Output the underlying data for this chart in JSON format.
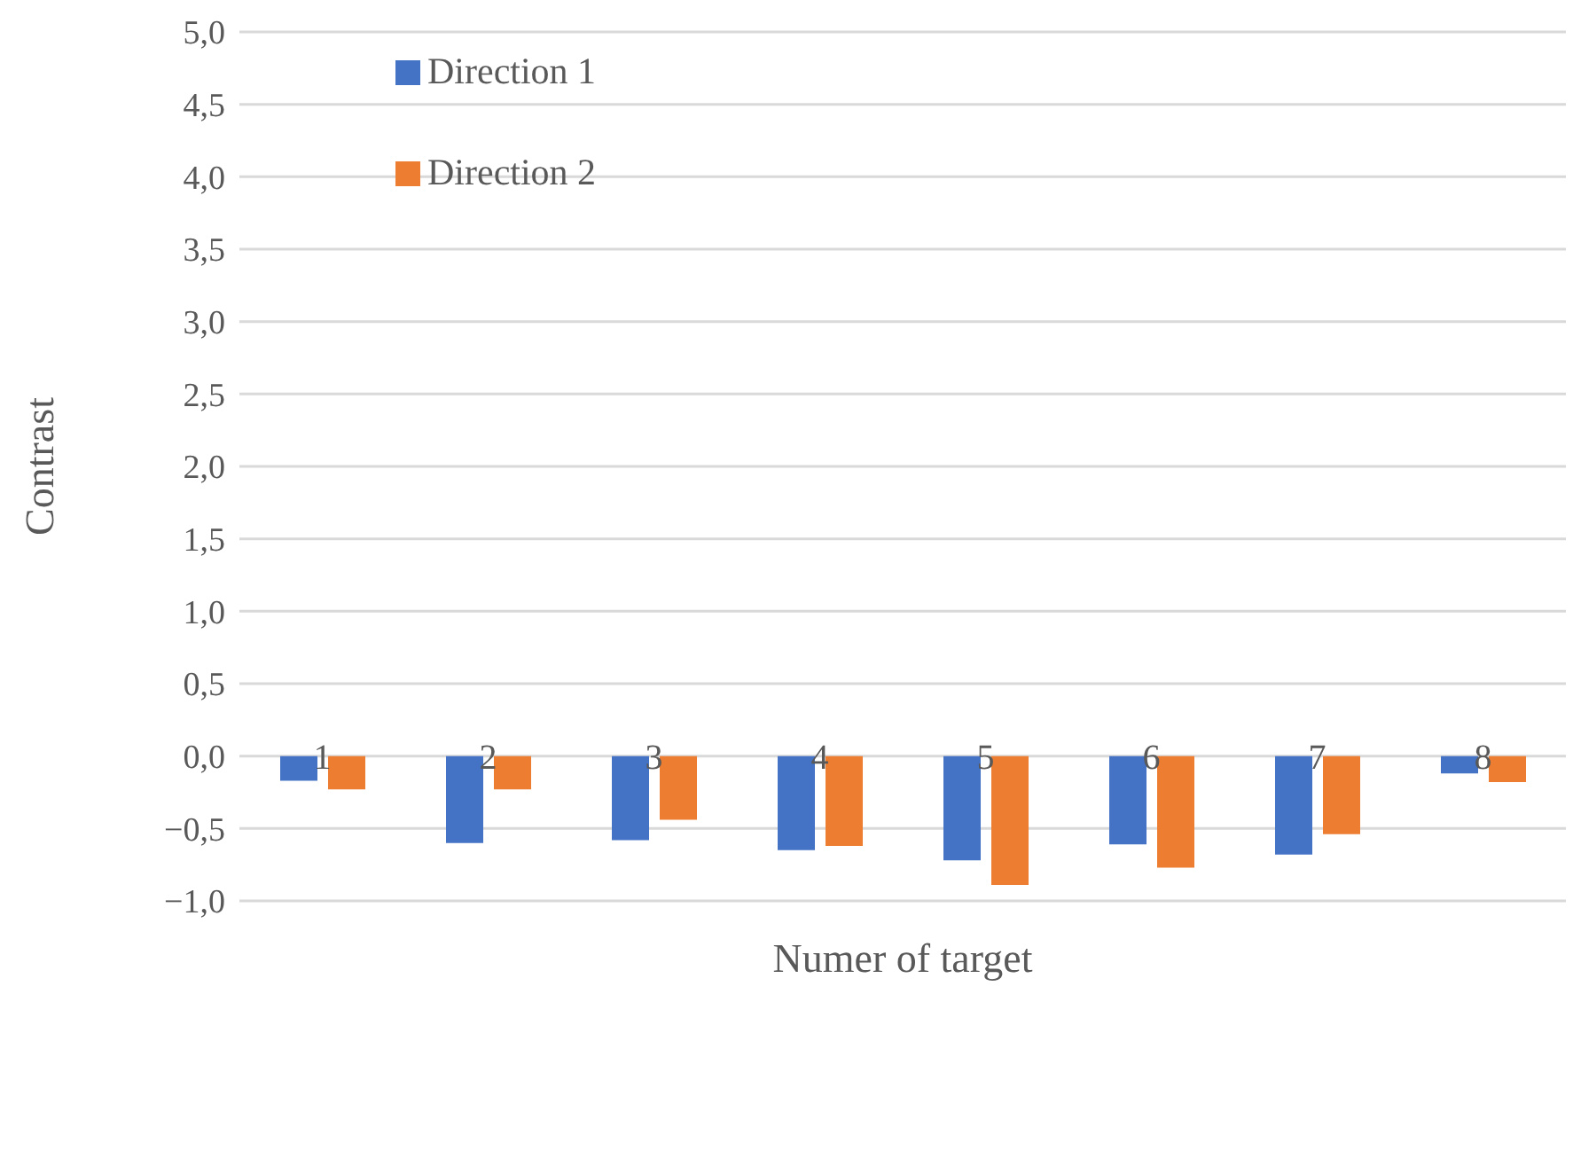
{
  "chart_data": {
    "type": "bar",
    "xlabel": "Numer of target",
    "ylabel": "Contrast",
    "categories": [
      "1",
      "2",
      "3",
      "4",
      "5",
      "6",
      "7",
      "8"
    ],
    "series": [
      {
        "name": "Direction 1",
        "color": "#4472c4",
        "values": [
          -0.17,
          -0.6,
          -0.58,
          -0.65,
          -0.72,
          -0.61,
          -0.68,
          -0.12
        ]
      },
      {
        "name": "Direction 2",
        "color": "#ed7d31",
        "values": [
          -0.23,
          -0.23,
          -0.44,
          -0.62,
          -0.89,
          -0.77,
          -0.54,
          -0.18
        ]
      }
    ],
    "ylim": [
      -1,
      5
    ],
    "yticks": [
      {
        "value": -1,
        "label": "−1,0"
      },
      {
        "value": -0.5,
        "label": "−0,5"
      },
      {
        "value": 0,
        "label": "0,0"
      },
      {
        "value": 0.5,
        "label": "0,5"
      },
      {
        "value": 1,
        "label": "1,0"
      },
      {
        "value": 1.5,
        "label": "1,5"
      },
      {
        "value": 2,
        "label": "2,0"
      },
      {
        "value": 2.5,
        "label": "2,5"
      },
      {
        "value": 3,
        "label": "3,0"
      },
      {
        "value": 3.5,
        "label": "3,5"
      },
      {
        "value": 4,
        "label": "4,0"
      },
      {
        "value": 4.5,
        "label": "4,5"
      },
      {
        "value": 5,
        "label": "5,0"
      }
    ],
    "grid": "y",
    "legend": "top left"
  }
}
